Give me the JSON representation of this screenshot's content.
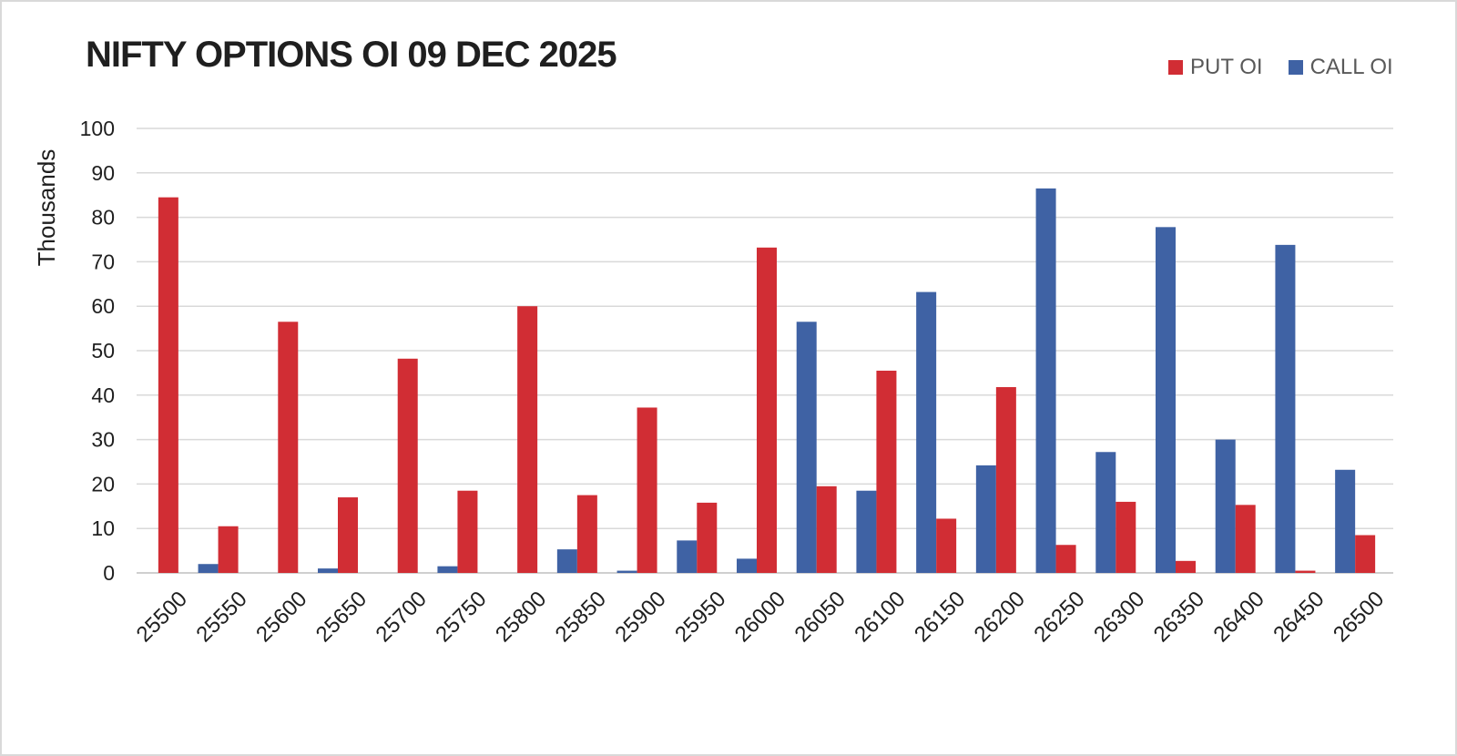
{
  "chart_data": {
    "type": "bar",
    "title": "NIFTY OPTIONS OI 09 DEC 2025",
    "ylabel": "Thousands",
    "xlabel": "",
    "ylim": [
      0,
      100
    ],
    "yticks": [
      "0",
      "10",
      "20",
      "30",
      "40",
      "50",
      "60",
      "70",
      "80",
      "90",
      "100"
    ],
    "grid": true,
    "legend_position": "top-right",
    "categories": [
      "25500",
      "25550",
      "25600",
      "25650",
      "25700",
      "25750",
      "25800",
      "25850",
      "25900",
      "25950",
      "26000",
      "26050",
      "26100",
      "26150",
      "26200",
      "26250",
      "26300",
      "26350",
      "26400",
      "26450",
      "26500"
    ],
    "series": [
      {
        "name": "CALL OI",
        "color": "#3f62a4",
        "values": [
          0,
          2.0,
          0,
          1.0,
          0,
          1.5,
          0,
          5.3,
          0.5,
          7.3,
          3.2,
          56.5,
          18.5,
          63.2,
          24.2,
          86.5,
          27.2,
          77.8,
          30.0,
          73.8,
          23.2
        ]
      },
      {
        "name": "PUT OI",
        "color": "#d12d34",
        "values": [
          84.5,
          10.5,
          56.5,
          17.0,
          48.2,
          18.5,
          60.0,
          17.5,
          37.2,
          15.8,
          73.2,
          19.5,
          45.5,
          12.2,
          41.8,
          6.3,
          16.0,
          2.7,
          15.3,
          0.5,
          8.5
        ]
      }
    ]
  }
}
